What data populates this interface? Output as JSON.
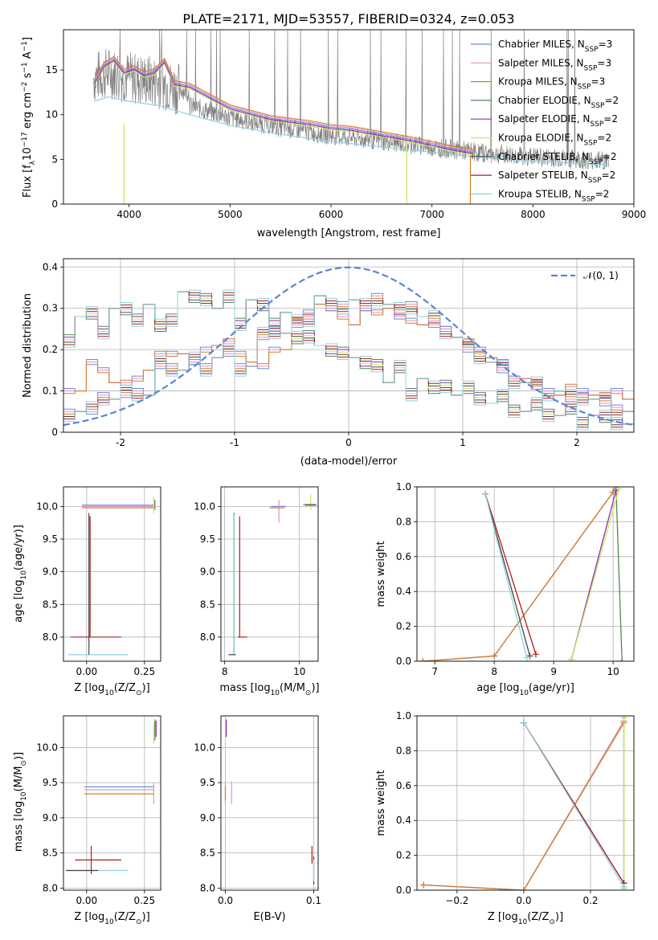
{
  "figure_title": "PLATE=2171, MJD=53557, FIBERID=0324, z=0.053",
  "legend": [
    {
      "name": "Chabrier MILES, N",
      "sub": "SSP",
      "tail": "=3",
      "color": "#6b8bd6"
    },
    {
      "name": "Salpeter MILES, N",
      "sub": "SSP",
      "tail": "=3",
      "color": "#e88fc8"
    },
    {
      "name": "Kroupa MILES, N",
      "sub": "SSP",
      "tail": "=3",
      "color": "#d0802a"
    },
    {
      "name": "Chabrier ELODIE, N",
      "sub": "SSP",
      "tail": "=2",
      "color": "#4d8a4d"
    },
    {
      "name": "Salpeter ELODIE, N",
      "sub": "SSP",
      "tail": "=2",
      "color": "#8e2ab0"
    },
    {
      "name": "Kroupa ELODIE, N",
      "sub": "SSP",
      "tail": "=2",
      "color": "#c8e65a"
    },
    {
      "name": "Chabrier STELIB, N",
      "sub": "SSP",
      "tail": "=2",
      "color": "#444444"
    },
    {
      "name": "Salpeter STELIB, N",
      "sub": "SSP",
      "tail": "=2",
      "color": "#b01c1c"
    },
    {
      "name": "Kroupa STELIB, N",
      "sub": "SSP",
      "tail": "=2",
      "color": "#8fd3e0"
    }
  ],
  "normal_label": "𝒩(0, 1)",
  "normal_color": "#5b84d6",
  "chart_data": [
    {
      "id": "spectrum",
      "type": "line",
      "xlabel": "wavelength [Angstrom, rest frame]",
      "ylabel_main": "Flux [f",
      "ylabel_sub": "λ",
      "ylabel_mid": "10",
      "ylabel_sup1": "−17",
      "ylabel_rest": " erg cm",
      "ylabel_sup2": "−2",
      "ylabel_rest2": " s",
      "ylabel_sup3": "−1",
      "ylabel_rest3": " A",
      "ylabel_sup4": "−1",
      "ylabel_end": "]",
      "xlim": [
        3350,
        9000
      ],
      "ylim": [
        0,
        19.5
      ],
      "xticks": [
        4000,
        5000,
        6000,
        7000,
        8000,
        9000
      ],
      "yticks": [
        0,
        5,
        10,
        15
      ],
      "observed_range": [
        3650,
        8750
      ],
      "model_curve": [
        [
          3650,
          13.5
        ],
        [
          3750,
          15.5
        ],
        [
          3850,
          16.2
        ],
        [
          3950,
          14.8
        ],
        [
          4050,
          15.2
        ],
        [
          4150,
          14.5
        ],
        [
          4250,
          14.8
        ],
        [
          4350,
          16.0
        ],
        [
          4450,
          13.5
        ],
        [
          4600,
          13.2
        ],
        [
          4800,
          12.0
        ],
        [
          5000,
          10.8
        ],
        [
          5200,
          10.2
        ],
        [
          5400,
          9.6
        ],
        [
          5600,
          9.3
        ],
        [
          5800,
          9.0
        ],
        [
          6000,
          8.6
        ],
        [
          6200,
          8.4
        ],
        [
          6500,
          7.8
        ],
        [
          6800,
          7.2
        ],
        [
          7000,
          6.7
        ],
        [
          7200,
          6.2
        ],
        [
          7400,
          5.8
        ]
      ],
      "stelib_curve": [
        [
          3650,
          11.5
        ],
        [
          3800,
          12.0
        ],
        [
          4000,
          11.5
        ],
        [
          4300,
          11.0
        ],
        [
          4600,
          10.0
        ],
        [
          5000,
          8.8
        ],
        [
          5500,
          7.8
        ],
        [
          6000,
          7.0
        ],
        [
          6500,
          6.4
        ],
        [
          7000,
          5.8
        ],
        [
          7500,
          5.2
        ],
        [
          8000,
          4.8
        ],
        [
          8500,
          4.5
        ],
        [
          8750,
          4.4
        ]
      ]
    },
    {
      "id": "residual_hist",
      "type": "line",
      "xlabel": "(data-model)/error",
      "ylabel": "Normed distribution",
      "xlim": [
        -2.5,
        2.5
      ],
      "ylim": [
        0,
        0.42
      ],
      "xticks": [
        -2,
        -1,
        0,
        1,
        2
      ],
      "yticks": [
        0.0,
        0.1,
        0.2,
        0.3,
        0.4
      ],
      "bin_width": 0.1,
      "bin_start": -2.5,
      "groups": [
        {
          "colors": [
            "#6b8bd6",
            "#e88fc8",
            "#d0802a"
          ],
          "values": [
            0.1,
            0.1,
            0.17,
            0.15,
            0.12,
            0.12,
            0.13,
            0.15,
            0.19,
            0.19,
            0.19,
            0.17,
            0.2,
            0.21,
            0.22,
            0.19,
            0.17,
            0.16,
            0.2,
            0.2,
            0.27,
            0.29,
            0.31,
            0.3,
            0.28,
            0.26,
            0.3,
            0.29,
            0.3,
            0.28,
            0.27,
            0.26,
            0.26,
            0.25,
            0.23,
            0.22,
            0.2,
            0.18,
            0.17,
            0.13,
            0.13,
            0.12,
            0.1,
            0.09,
            0.11,
            0.1,
            0.09,
            0.09,
            0.1,
            0.08
          ]
        },
        {
          "colors": [
            "#4d8a4d",
            "#8e2ab0",
            "#c8e65a",
            "#444444",
            "#b01c1c",
            "#8fd3e0"
          ],
          "values": [
            0.23,
            0.28,
            0.28,
            0.25,
            0.3,
            0.29,
            0.28,
            0.31,
            0.25,
            0.28,
            0.34,
            0.32,
            0.33,
            0.3,
            0.32,
            0.27,
            0.32,
            0.3,
            0.27,
            0.29,
            0.22,
            0.24,
            0.21,
            0.19,
            0.2,
            0.18,
            0.16,
            0.17,
            0.12,
            0.15,
            0.1,
            0.13,
            0.1,
            0.12,
            0.09,
            0.1,
            0.09,
            0.07,
            0.08,
            0.06,
            0.05,
            0.06,
            0.05,
            0.04,
            0.05,
            0.03,
            0.04,
            0.03,
            0.03,
            0.02
          ]
        },
        {
          "colors": [
            "#6b8bd6",
            "#e88fc8",
            "#d0802a",
            "#444444",
            "#b01c1c",
            "#8fd3e0"
          ],
          "values": [
            0.05,
            0.05,
            0.05,
            0.09,
            0.08,
            0.09,
            0.1,
            0.09,
            0.16,
            0.16,
            0.15,
            0.17,
            0.16,
            0.18,
            0.19,
            0.16,
            0.16,
            0.23,
            0.25,
            0.24,
            0.26,
            0.28,
            0.33,
            0.3,
            0.31,
            0.32,
            0.3,
            0.33,
            0.31,
            0.29,
            0.31,
            0.28,
            0.27,
            0.25,
            0.23,
            0.2,
            0.19,
            0.17,
            0.15,
            0.13,
            0.12,
            0.11,
            0.1,
            0.1,
            0.08,
            0.09,
            0.08,
            0.07,
            0.06,
            0.05
          ]
        }
      ],
      "normal": {
        "mu": 0,
        "sigma": 1
      }
    },
    {
      "id": "age_vs_Z",
      "type": "scatter",
      "xlabel": "Z [log",
      "xlabel_sub": "10",
      "xlabel_rest": "(Z/Z",
      "xlabel_sub2": "⊙",
      "xlabel_end": ")]",
      "ylabel": "age  [log",
      "ylabel_sub": "10",
      "ylabel_rest": "(age/yr)]",
      "xlim": [
        -0.1,
        0.32
      ],
      "ylim": [
        7.63,
        10.3
      ],
      "xticks": [
        0.0,
        0.25
      ],
      "xticklabels": [
        "0.00",
        "0.25"
      ],
      "yticks": [
        8.0,
        8.5,
        9.0,
        9.5,
        10.0
      ],
      "yticklabels": [
        "8.0",
        "8.5",
        "9.0",
        "9.5",
        "10.0"
      ]
    },
    {
      "id": "age_vs_mass",
      "type": "scatter",
      "xlabel": "mass [log",
      "xlabel_sub": "10",
      "xlabel_rest": "(M/M",
      "xlabel_sub2": "⊙",
      "xlabel_end": ")]",
      "xlim": [
        7.9,
        10.5
      ],
      "ylim": [
        7.63,
        10.3
      ],
      "xticks": [
        8,
        10
      ],
      "xticklabels": [
        "8",
        "10"
      ],
      "yticks": [
        8.0,
        8.5,
        9.0,
        9.5,
        10.0
      ],
      "yticklabels": [
        "8.0",
        "8.5",
        "9.0",
        "9.5",
        "10.0"
      ]
    },
    {
      "id": "weight_vs_age",
      "type": "line",
      "xlabel": "age  [log",
      "xlabel_sub": "10",
      "xlabel_rest": "(age/yr)]",
      "ylabel": "mass weight",
      "xlim": [
        6.7,
        10.35
      ],
      "ylim": [
        0,
        1.0
      ],
      "xticks": [
        7,
        8,
        9,
        10
      ],
      "xticklabels": [
        "7",
        "8",
        "9",
        "10"
      ],
      "yticks": [
        0.0,
        0.2,
        0.4,
        0.6,
        0.8,
        1.0
      ],
      "yticklabels": [
        "0.0",
        "0.2",
        "0.4",
        "0.6",
        "0.8",
        "1.0"
      ]
    },
    {
      "id": "mass_vs_Z",
      "type": "scatter",
      "xlabel": "Z [log",
      "xlabel_sub": "10",
      "xlabel_rest": "(Z/Z",
      "xlabel_sub2": "⊙",
      "xlabel_end": ")]",
      "ylabel": "mass [log",
      "ylabel_sub": "10",
      "ylabel_rest": "(M/M",
      "ylabel_sub2": "⊙",
      "ylabel_end": ")]",
      "xlim": [
        -0.1,
        0.32
      ],
      "ylim": [
        7.97,
        10.45
      ],
      "xticks": [
        0.0,
        0.25
      ],
      "xticklabels": [
        "0.00",
        "0.25"
      ],
      "yticks": [
        8.0,
        8.5,
        9.0,
        9.5,
        10.0
      ],
      "yticklabels": [
        "8.0",
        "8.5",
        "9.0",
        "9.5",
        "10.0"
      ]
    },
    {
      "id": "mass_vs_ebv",
      "type": "scatter",
      "xlabel": "E(B-V)",
      "xlim": [
        -0.005,
        0.105
      ],
      "ylim": [
        7.97,
        10.45
      ],
      "xticks": [
        0.0,
        0.1
      ],
      "xticklabels": [
        "0.0",
        "0.1"
      ],
      "yticks": [
        8.0,
        8.5,
        9.0,
        9.5,
        10.0
      ],
      "yticklabels": [
        "8.0",
        "8.5",
        "9.0",
        "9.5",
        "10.0"
      ]
    },
    {
      "id": "weight_vs_Z",
      "type": "line",
      "xlabel": "Z [log",
      "xlabel_sub": "10",
      "xlabel_rest": "(Z/Z",
      "xlabel_sub2": "⊙",
      "xlabel_end": ")]",
      "ylabel": "mass weight",
      "xlim": [
        -0.32,
        0.33
      ],
      "ylim": [
        0,
        1.0
      ],
      "xticks": [
        -0.2,
        0.0,
        0.2
      ],
      "xticklabels": [
        "−0.2",
        "0.0",
        "0.2"
      ],
      "yticks": [
        0.0,
        0.2,
        0.4,
        0.6,
        0.8,
        1.0
      ],
      "yticklabels": [
        "0.0",
        "0.2",
        "0.4",
        "0.6",
        "0.8",
        "1.0"
      ]
    }
  ],
  "weight_age_lines": [
    {
      "color": "#6b8bd6",
      "pts": [
        [
          6.8,
          0.0
        ],
        [
          8.0,
          0.03
        ],
        [
          10.0,
          0.97
        ]
      ]
    },
    {
      "color": "#e88fc8",
      "pts": [
        [
          6.8,
          0.0
        ],
        [
          8.0,
          0.03
        ],
        [
          10.0,
          0.97
        ]
      ]
    },
    {
      "color": "#d0802a",
      "pts": [
        [
          6.8,
          0.0
        ],
        [
          8.0,
          0.03
        ],
        [
          10.0,
          0.97
        ]
      ]
    },
    {
      "color": "#4d8a4d",
      "pts": [
        [
          10.15,
          0.0
        ],
        [
          10.05,
          0.99
        ]
      ]
    },
    {
      "color": "#8e2ab0",
      "pts": [
        [
          9.3,
          0.01
        ],
        [
          10.05,
          0.98
        ]
      ]
    },
    {
      "color": "#c8e65a",
      "pts": [
        [
          9.3,
          0.01
        ],
        [
          10.1,
          0.99
        ]
      ]
    },
    {
      "color": "#444444",
      "pts": [
        [
          7.85,
          0.96
        ],
        [
          8.6,
          0.03
        ]
      ]
    },
    {
      "color": "#b01c1c",
      "pts": [
        [
          7.85,
          0.96
        ],
        [
          8.7,
          0.04
        ]
      ]
    },
    {
      "color": "#8fd3e0",
      "pts": [
        [
          7.85,
          0.96
        ],
        [
          8.55,
          0.02
        ]
      ]
    }
  ],
  "weight_Z_lines": [
    {
      "color": "#6b8bd6",
      "pts": [
        [
          -0.3,
          0.03
        ],
        [
          0.0,
          0.0
        ],
        [
          0.3,
          0.97
        ]
      ]
    },
    {
      "color": "#e88fc8",
      "pts": [
        [
          -0.3,
          0.03
        ],
        [
          0.0,
          0.0
        ],
        [
          0.3,
          0.97
        ]
      ]
    },
    {
      "color": "#d0802a",
      "pts": [
        [
          -0.3,
          0.03
        ],
        [
          0.0,
          0.0
        ],
        [
          0.3,
          0.96
        ]
      ]
    },
    {
      "color": "#4d8a4d",
      "pts": [
        [
          0.3,
          0.01
        ],
        [
          0.3,
          0.99
        ]
      ]
    },
    {
      "color": "#c8e65a",
      "pts": [
        [
          0.3,
          0.01
        ],
        [
          0.3,
          0.99
        ]
      ]
    },
    {
      "color": "#444444",
      "pts": [
        [
          0.0,
          0.96
        ],
        [
          0.3,
          0.04
        ]
      ]
    },
    {
      "color": "#b01c1c",
      "pts": [
        [
          0.0,
          0.96
        ],
        [
          0.3,
          0.04
        ]
      ]
    },
    {
      "color": "#8fd3e0",
      "pts": [
        [
          0.0,
          0.96
        ],
        [
          0.3,
          0.02
        ]
      ]
    }
  ],
  "age_Z_bars": [
    {
      "color": "#6b8bd6",
      "x": [
        -0.02,
        0.29
      ],
      "y": 10.02
    },
    {
      "color": "#e88fc8",
      "x": [
        -0.02,
        0.29
      ],
      "y": 10.0
    },
    {
      "color": "#d0802a",
      "x": [
        -0.02,
        0.29
      ],
      "y": 9.98
    },
    {
      "color": "#b01c1c",
      "x": [
        -0.07,
        0.15
      ],
      "y": 8.0
    },
    {
      "color": "#8fd3e0",
      "x": [
        -0.08,
        0.18
      ],
      "y": 7.73
    },
    {
      "color": "#444444",
      "vx": 0.01,
      "vy": [
        7.73,
        9.9
      ]
    },
    {
      "color": "#b01c1c",
      "vx": 0.015,
      "vy": [
        8.0,
        9.85
      ]
    },
    {
      "color": "#c8e65a",
      "vx": 0.29,
      "vy": [
        9.9,
        10.15
      ]
    },
    {
      "color": "#4d8a4d",
      "vx": 0.295,
      "vy": [
        9.95,
        10.1
      ]
    }
  ],
  "age_mass_bars": [
    {
      "color": "#444444",
      "vx": 8.25,
      "vy": [
        7.73,
        9.9
      ]
    },
    {
      "color": "#8fd3e0",
      "vx": 8.25,
      "vy": [
        7.73,
        9.88
      ]
    },
    {
      "color": "#b01c1c",
      "vx": 8.4,
      "vy": [
        8.0,
        9.85
      ]
    },
    {
      "color": "#444444",
      "x": [
        8.1,
        8.3
      ],
      "y": 7.73
    },
    {
      "color": "#b01c1c",
      "x": [
        8.35,
        8.6
      ],
      "y": 8.0
    },
    {
      "color": "#6b8bd6",
      "x": [
        9.25,
        9.65
      ],
      "y": 10.0
    },
    {
      "color": "#e88fc8",
      "vx": 9.45,
      "vy": [
        9.75,
        10.1
      ]
    },
    {
      "color": "#d0802a",
      "x": [
        9.2,
        9.6
      ],
      "y": 9.98
    },
    {
      "color": "#c8e65a",
      "vx": 10.3,
      "vy": [
        9.95,
        10.18
      ]
    },
    {
      "color": "#4d8a4d",
      "x": [
        10.1,
        10.45
      ],
      "y": 10.03
    },
    {
      "color": "#8e2ab0",
      "x": [
        10.15,
        10.45
      ],
      "y": 10.02
    }
  ],
  "mass_Z_bars": [
    {
      "color": "#6b8bd6",
      "x": [
        -0.01,
        0.29
      ],
      "y": 9.44
    },
    {
      "color": "#e88fc8",
      "x": [
        -0.01,
        0.29
      ],
      "y": 9.4
    },
    {
      "color": "#d0802a",
      "x": [
        -0.01,
        0.29
      ],
      "y": 9.34
    },
    {
      "color": "#b01c1c",
      "x": [
        -0.05,
        0.15
      ],
      "y": 8.4
    },
    {
      "color": "#b01c1c",
      "vx": 0.02,
      "vy": [
        8.2,
        8.6
      ]
    },
    {
      "color": "#8fd3e0",
      "x": [
        -0.08,
        0.18
      ],
      "y": 8.25
    },
    {
      "color": "#444444",
      "x": [
        -0.09,
        0.05
      ],
      "y": 8.25
    },
    {
      "color": "#c8e65a",
      "vx": 0.29,
      "vy": [
        10.05,
        10.35
      ]
    },
    {
      "color": "#4d8a4d",
      "vx": 0.295,
      "vy": [
        10.1,
        10.4
      ]
    },
    {
      "color": "#8e2ab0",
      "vx": 0.3,
      "vy": [
        10.15,
        10.38
      ]
    },
    {
      "color": "#e88fc8",
      "vx": 0.29,
      "vy": [
        9.2,
        9.5
      ]
    }
  ],
  "mass_ebv_bars": [
    {
      "color": "#c8e65a",
      "vx": 0.0,
      "vy": [
        10.1,
        10.35
      ]
    },
    {
      "color": "#8e2ab0",
      "vx": 0.001,
      "vy": [
        10.15,
        10.4
      ]
    },
    {
      "color": "#e88fc8",
      "vx": 0.0,
      "vy": [
        9.2,
        9.5
      ]
    },
    {
      "color": "#d0802a",
      "vx": 0.0,
      "vy": [
        9.25,
        9.45
      ]
    },
    {
      "color": "#e88fc8",
      "vx": 0.007,
      "vy": [
        9.2,
        9.52
      ]
    },
    {
      "color": "#b01c1c",
      "vx": 0.098,
      "vy": [
        8.35,
        8.6
      ]
    },
    {
      "color": "#444444",
      "vx": 0.1,
      "vy": [
        8.05,
        8.45
      ]
    },
    {
      "color": "#8fd3e0",
      "vx": 0.1,
      "vy": [
        8.1,
        8.4
      ]
    }
  ]
}
